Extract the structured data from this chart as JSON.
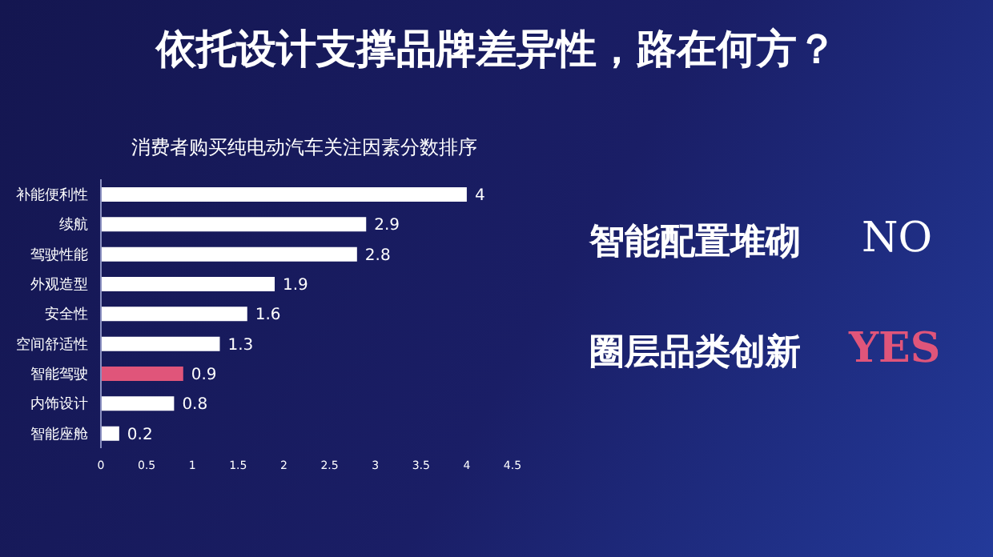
{
  "chart_data": {
    "type": "bar",
    "orientation": "horizontal",
    "title": "依托设计支撑品牌差异性，路在何方？",
    "subtitle": "消费者购买纯电动汽车关注因素分数排序",
    "categories": [
      "补能便利性",
      "续航",
      "驾驶性能",
      "外观造型",
      "安全性",
      "空间舒适性",
      "智能驾驶",
      "内饰设计",
      "智能座舱"
    ],
    "values": [
      4,
      2.9,
      2.8,
      1.9,
      1.6,
      1.3,
      0.9,
      0.8,
      0.2
    ],
    "colors": [
      "#ffffff",
      "#ffffff",
      "#ffffff",
      "#ffffff",
      "#ffffff",
      "#ffffff",
      "#e0557a",
      "#ffffff",
      "#ffffff"
    ],
    "xlim": [
      0,
      4.5
    ],
    "xticks": [
      0,
      0.5,
      1,
      1.5,
      2,
      2.5,
      3,
      3.5,
      4,
      4.5
    ],
    "grid": false,
    "data_labels": true,
    "annotations": [
      "智能配置堆砌",
      "NO",
      "圈层品类创新",
      "YES"
    ]
  }
}
